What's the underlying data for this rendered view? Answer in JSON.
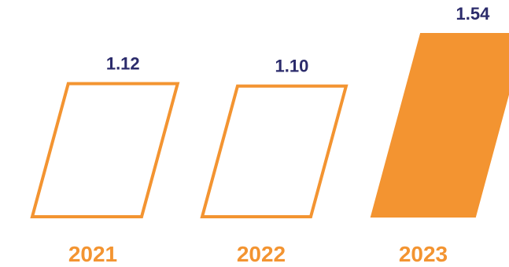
{
  "chart_data": {
    "type": "bar",
    "categories": [
      "2021",
      "2022",
      "2023"
    ],
    "values": [
      1.12,
      1.1,
      1.54
    ],
    "value_labels": [
      "1.12",
      "1.10",
      "1.54"
    ],
    "bar_styles": [
      "outline",
      "outline",
      "filled"
    ],
    "ylim": [
      0,
      1.54
    ],
    "grid": false,
    "legend": "none",
    "title": "",
    "xlabel": "",
    "ylabel": ""
  },
  "colors": {
    "bar": "#F39431",
    "value_label": "#2B2B6B",
    "year_label": "#F39431",
    "background": "#FFFFFF"
  }
}
